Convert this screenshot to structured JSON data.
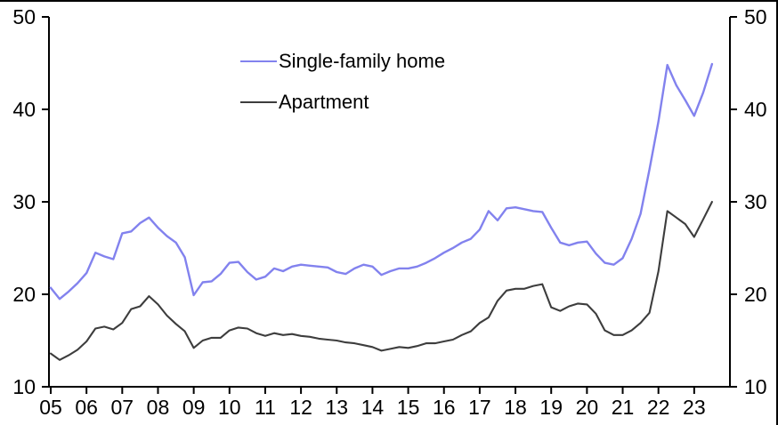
{
  "chart_data": {
    "type": "line",
    "title": "",
    "xlabel": "",
    "ylabel": "",
    "x_unit": "year (quarterly observations)",
    "ylim": [
      10,
      50
    ],
    "y_ticks": [
      10,
      20,
      30,
      40,
      50
    ],
    "y_tick_labels": [
      "10",
      "20",
      "30",
      "40",
      "50"
    ],
    "dual_y_axis": true,
    "grid": false,
    "legend_position": "top-center",
    "axis_color": "#000000",
    "x_tick_labels": [
      "05",
      "06",
      "07",
      "08",
      "09",
      "10",
      "11",
      "12",
      "13",
      "14",
      "15",
      "16",
      "17",
      "18",
      "19",
      "20",
      "21",
      "22",
      "23"
    ],
    "x_tick_years": [
      2005,
      2006,
      2007,
      2008,
      2009,
      2010,
      2011,
      2012,
      2013,
      2014,
      2015,
      2016,
      2017,
      2018,
      2019,
      2020,
      2021,
      2022,
      2023
    ],
    "xlim_years": [
      2004.95,
      2024.0
    ],
    "x_start": 2005,
    "x_step": 0.25,
    "series": [
      {
        "name": "Single-family home",
        "color": "#8282ee",
        "width": 2.4,
        "values": [
          20.7,
          19.5,
          20.3,
          21.2,
          22.3,
          24.5,
          24.1,
          23.8,
          26.6,
          26.8,
          27.7,
          28.3,
          27.2,
          26.3,
          25.6,
          24.0,
          19.9,
          21.3,
          21.4,
          22.2,
          23.4,
          23.5,
          22.4,
          21.6,
          21.9,
          22.8,
          22.5,
          23.0,
          23.2,
          23.1,
          23.0,
          22.9,
          22.4,
          22.2,
          22.8,
          23.2,
          23.0,
          22.1,
          22.5,
          22.8,
          22.8,
          23.0,
          23.4,
          23.9,
          24.5,
          25.0,
          25.6,
          26.0,
          27.0,
          29.0,
          28.0,
          29.3,
          29.4,
          29.2,
          29.0,
          28.9,
          27.2,
          25.6,
          25.3,
          25.6,
          25.7,
          24.4,
          23.4,
          23.2,
          23.9,
          26.0,
          28.7,
          33.5,
          38.7,
          44.8,
          42.6,
          41.0,
          39.3,
          41.8,
          44.9
        ]
      },
      {
        "name": "Apartment",
        "color": "#3d3d3d",
        "width": 2.1,
        "values": [
          13.6,
          12.9,
          13.4,
          14.0,
          14.9,
          16.3,
          16.5,
          16.2,
          16.9,
          18.4,
          18.7,
          19.8,
          18.9,
          17.7,
          16.8,
          16.0,
          14.2,
          15.0,
          15.3,
          15.3,
          16.1,
          16.4,
          16.3,
          15.8,
          15.5,
          15.8,
          15.6,
          15.7,
          15.5,
          15.4,
          15.2,
          15.1,
          15.0,
          14.8,
          14.7,
          14.5,
          14.3,
          13.9,
          14.1,
          14.3,
          14.2,
          14.4,
          14.7,
          14.7,
          14.9,
          15.1,
          15.6,
          16.0,
          16.9,
          17.5,
          19.3,
          20.4,
          20.6,
          20.6,
          20.9,
          21.1,
          18.6,
          18.2,
          18.7,
          19.0,
          18.9,
          17.9,
          16.1,
          15.6,
          15.6,
          16.1,
          16.9,
          18.0,
          22.5,
          29.0,
          28.3,
          27.6,
          26.2,
          28.1,
          30.0
        ]
      }
    ]
  }
}
